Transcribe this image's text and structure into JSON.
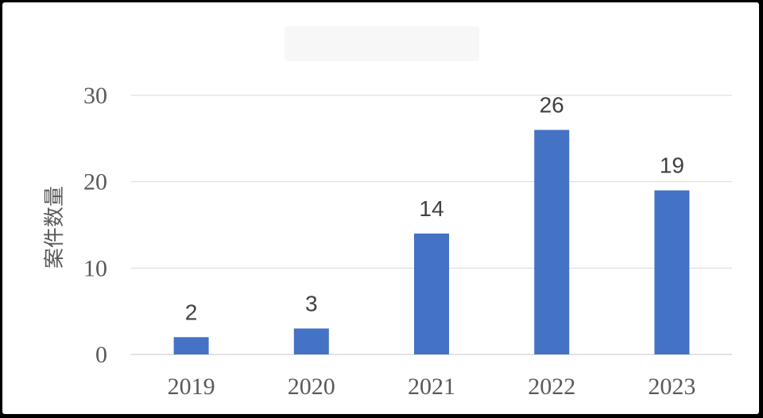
{
  "chart_data": {
    "type": "bar",
    "title": "",
    "xlabel": "",
    "ylabel": "案件数量",
    "categories": [
      "2019",
      "2020",
      "2021",
      "2022",
      "2023"
    ],
    "values": [
      2,
      3,
      14,
      26,
      19
    ],
    "ylim": [
      0,
      30
    ],
    "yticks": [
      0,
      10,
      20,
      30
    ],
    "grid": true,
    "bar_color": "#4472c4",
    "grid_color": "#d9d9d9"
  }
}
